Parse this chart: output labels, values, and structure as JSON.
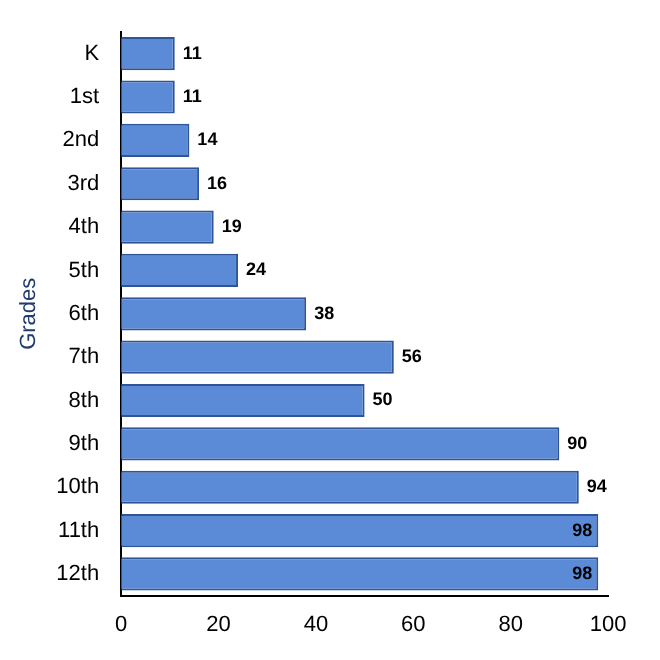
{
  "chart_data": {
    "type": "bar",
    "orientation": "horizontal",
    "ylabel": "Grades",
    "categories": [
      "K",
      "1st",
      "2nd",
      "3rd",
      "4th",
      "5th",
      "6th",
      "7th",
      "8th",
      "9th",
      "10th",
      "11th",
      "12th"
    ],
    "values": [
      11,
      11,
      14,
      16,
      19,
      24,
      38,
      56,
      50,
      90,
      94,
      98,
      98
    ],
    "color": "#5b8ad6",
    "xlim": [
      0,
      100
    ],
    "xticks": [
      0,
      20,
      40,
      60,
      80,
      100
    ],
    "grid": false,
    "legend": false,
    "data_labels": true
  }
}
